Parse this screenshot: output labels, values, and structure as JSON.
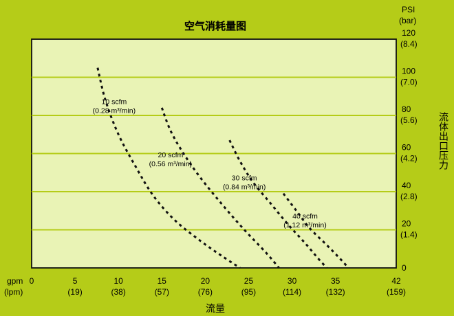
{
  "chart_data": {
    "type": "line",
    "title": "空气消耗量图",
    "xlabel": "流量",
    "ylabel": "流体出口压力",
    "x_unit_primary": "gpm",
    "x_unit_secondary": "(lpm)",
    "y_unit_primary": "PSI",
    "y_unit_secondary": "(bar)",
    "xlim": [
      0,
      42
    ],
    "ylim": [
      0,
      120
    ],
    "grid": "horizontal",
    "x_ticks": [
      {
        "value": 0,
        "primary": "0",
        "secondary": ""
      },
      {
        "value": 5,
        "primary": "5",
        "secondary": "(19)"
      },
      {
        "value": 10,
        "primary": "10",
        "secondary": "(38)"
      },
      {
        "value": 15,
        "primary": "15",
        "secondary": "(57)"
      },
      {
        "value": 20,
        "primary": "20",
        "secondary": "(76)"
      },
      {
        "value": 25,
        "primary": "25",
        "secondary": "(95)"
      },
      {
        "value": 30,
        "primary": "30",
        "secondary": "(114)"
      },
      {
        "value": 35,
        "primary": "35",
        "secondary": "(132)"
      },
      {
        "value": 42,
        "primary": "42",
        "secondary": "(159)"
      }
    ],
    "y_ticks": [
      {
        "value": 0,
        "primary": "0",
        "secondary": ""
      },
      {
        "value": 20,
        "primary": "20",
        "secondary": "(1.4)"
      },
      {
        "value": 40,
        "primary": "40",
        "secondary": "(2.8)"
      },
      {
        "value": 60,
        "primary": "60",
        "secondary": "(4.2)"
      },
      {
        "value": 80,
        "primary": "80",
        "secondary": "(5.6)"
      },
      {
        "value": 100,
        "primary": "100",
        "secondary": "(7.0)"
      },
      {
        "value": 120,
        "primary": "120",
        "secondary": "(8.4)"
      }
    ],
    "series": [
      {
        "name": "10 scfm",
        "name_secondary": "(0.28 m³/min)",
        "x": [
          7.6,
          8.5,
          10,
          12,
          14,
          16.5,
          19.5,
          22,
          24
        ],
        "y": [
          105,
          88,
          70,
          53,
          38,
          25,
          14,
          6,
          0
        ]
      },
      {
        "name": "20 scfm",
        "name_secondary": "(0.56 m³/min)",
        "x": [
          15,
          16,
          17.5,
          19.5,
          22,
          24.5,
          27,
          28.5
        ],
        "y": [
          84,
          72,
          60,
          47,
          33,
          20,
          8,
          0
        ]
      },
      {
        "name": "30 scfm",
        "name_secondary": "(0.84 m³/min)",
        "x": [
          22.8,
          24,
          25.5,
          27.5,
          29.5,
          31.5,
          33,
          34
        ],
        "y": [
          67,
          56,
          45,
          34,
          23,
          13,
          5,
          0
        ]
      },
      {
        "name": "40 scfm",
        "name_secondary": "(1.12 m³/min)",
        "x": [
          29,
          30.5,
          32,
          34,
          35.5,
          36.5
        ],
        "y": [
          39,
          30,
          21,
          12,
          5,
          0
        ]
      }
    ]
  }
}
